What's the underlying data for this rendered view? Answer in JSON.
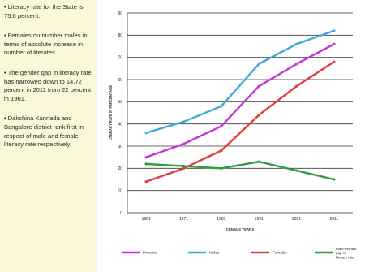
{
  "notes": [
    "Literacy rate for the State is 75.6 percent.",
    "Females outnumber males in terms of absolute increase in number of literates.",
    "The gender gap in literacy rate has narrowed down to 14.72 percent in 2011 from 22 percent in 1961.",
    "Dakshina Kannada and Bangalore district rank first in respect of male and female literacy rate respectively."
  ],
  "chart_data": {
    "type": "line",
    "title": "",
    "xlabel": "CENSUS YEARS",
    "ylabel": "LITERACY RATE IN PERCENTAGE",
    "categories": [
      "1961",
      "1971",
      "1981",
      "1991",
      "2001",
      "2011"
    ],
    "ylim": [
      0,
      90
    ],
    "yticks": [
      "0",
      "10",
      "20",
      "30",
      "40",
      "50",
      "60",
      "70",
      "80",
      "90"
    ],
    "grid": true,
    "legend_position": "bottom",
    "series": [
      {
        "name": "Persons",
        "color": "#c233d6",
        "values": [
          25,
          31,
          39,
          57,
          67,
          76
        ]
      },
      {
        "name": "Males",
        "color": "#3fa9dc",
        "values": [
          36,
          41,
          48,
          67,
          76,
          82
        ]
      },
      {
        "name": "Females",
        "color": "#e23b3b",
        "values": [
          14,
          20,
          28,
          44,
          57,
          68
        ]
      },
      {
        "name": "Male-Female gap in literacy rate",
        "color": "#2e9e3e",
        "values": [
          22,
          21,
          20,
          23,
          19,
          15
        ]
      }
    ]
  }
}
